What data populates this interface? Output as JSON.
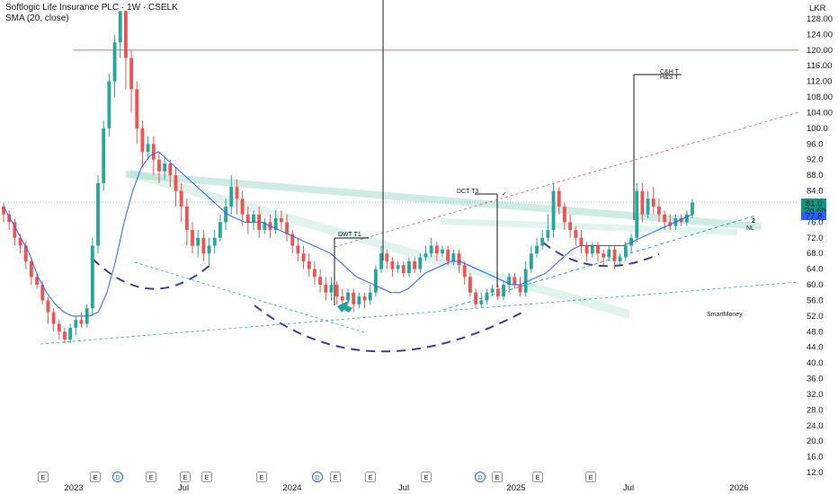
{
  "header": {
    "title": "Softlogic Life Insurance PLC · 1W · CSELK",
    "indicator": "SMA (20, close)"
  },
  "price_axis": {
    "currency": "LKR",
    "ticks": [
      "128.00",
      "124.00",
      "120.00",
      "116.00",
      "112.00",
      "108.00",
      "104.00",
      "100.0",
      "96.0",
      "92.0",
      "88.0",
      "84.0",
      "80.0",
      "76.0",
      "72.0",
      "68.0",
      "64.0",
      "60.0",
      "56.0",
      "52.0",
      "48.0",
      "44.0",
      "40.0",
      "36.0",
      "32.0",
      "28.0",
      "24.0",
      "20.0",
      "16.0",
      "12.0"
    ]
  },
  "time_axis": {
    "ticks": [
      "2023",
      "Jul",
      "2024",
      "Jul",
      "2025",
      "Jul",
      "2026"
    ]
  },
  "badges": {
    "price": "81.0",
    "countdown": "2d 6h",
    "price2": "76.0",
    "sma": "77.8"
  },
  "annotations": {
    "dwt": "DWT  T1",
    "dct": "DCT  T3",
    "chart1": "C&H T",
    "chart2": "H&S T",
    "nl": "NL",
    "two": "2",
    "watermark": "SmartMoney"
  },
  "events": [
    "E",
    "E",
    "D",
    "E",
    "E",
    "E",
    "E",
    "D",
    "E",
    "E",
    "E",
    "D",
    "E",
    "E",
    "E"
  ],
  "colors": {
    "up": "#26a69a",
    "down": "#ef5350",
    "sma": "#2962ff",
    "band": "#a5dccc",
    "arc": "#3d3d9a",
    "resistance": "#ef5350",
    "badge_green": "#089981",
    "badge_blue": "#2962ff"
  },
  "chart_data": {
    "type": "candlestick",
    "y_range": [
      12,
      130
    ],
    "x_range": [
      "2022-11",
      "2026-02"
    ],
    "candles": [
      [
        80,
        78,
        81,
        76
      ],
      [
        78,
        76,
        79,
        74
      ],
      [
        76,
        72,
        77,
        70
      ],
      [
        72,
        70,
        73,
        68
      ],
      [
        70,
        66,
        71,
        64
      ],
      [
        66,
        62,
        67,
        60
      ],
      [
        62,
        60,
        63,
        59
      ],
      [
        60,
        56,
        61,
        55
      ],
      [
        56,
        53,
        57,
        50
      ],
      [
        53,
        50,
        54,
        48
      ],
      [
        50,
        48,
        51,
        46
      ],
      [
        48,
        46,
        49,
        45
      ],
      [
        46,
        49,
        50,
        45
      ],
      [
        49,
        51,
        52,
        47
      ],
      [
        51,
        50,
        53,
        49
      ],
      [
        50,
        54,
        55,
        49
      ],
      [
        54,
        70,
        72,
        52
      ],
      [
        70,
        86,
        88,
        68
      ],
      [
        86,
        100,
        102,
        84
      ],
      [
        100,
        112,
        114,
        98
      ],
      [
        112,
        122,
        124,
        108
      ],
      [
        122,
        130,
        130,
        118
      ],
      [
        130,
        118,
        130,
        110
      ],
      [
        118,
        110,
        120,
        104
      ],
      [
        110,
        100,
        112,
        96
      ],
      [
        100,
        94,
        102,
        90
      ],
      [
        94,
        96,
        98,
        92
      ],
      [
        96,
        92,
        98,
        88
      ],
      [
        92,
        89,
        94,
        86
      ],
      [
        89,
        91,
        93,
        87
      ],
      [
        91,
        88,
        92,
        85
      ],
      [
        88,
        84,
        90,
        80
      ],
      [
        84,
        80,
        86,
        76
      ],
      [
        80,
        74,
        82,
        70
      ],
      [
        74,
        70,
        76,
        68
      ],
      [
        70,
        72,
        74,
        67
      ],
      [
        72,
        68,
        74,
        66
      ],
      [
        68,
        70,
        72,
        65
      ],
      [
        70,
        72,
        74,
        68
      ],
      [
        72,
        76,
        78,
        71
      ],
      [
        76,
        80,
        82,
        74
      ],
      [
        80,
        85,
        88,
        78
      ],
      [
        85,
        82,
        87,
        78
      ],
      [
        82,
        78,
        84,
        75
      ],
      [
        78,
        76,
        80,
        73
      ],
      [
        76,
        78,
        79,
        74
      ],
      [
        78,
        74,
        80,
        72
      ],
      [
        74,
        76,
        77,
        73
      ],
      [
        76,
        74,
        78,
        72
      ],
      [
        74,
        77,
        79,
        73
      ],
      [
        77,
        76,
        79,
        74
      ],
      [
        76,
        73,
        78,
        71
      ],
      [
        73,
        70,
        74,
        68
      ],
      [
        70,
        68,
        72,
        66
      ],
      [
        68,
        66,
        70,
        64
      ],
      [
        66,
        64,
        68,
        62
      ],
      [
        64,
        62,
        66,
        60
      ],
      [
        62,
        60,
        64,
        58
      ],
      [
        60,
        58,
        62,
        56
      ],
      [
        58,
        60,
        62,
        56
      ],
      [
        60,
        57,
        61,
        55
      ],
      [
        57,
        56,
        59,
        54
      ],
      [
        56,
        58,
        59,
        55
      ],
      [
        58,
        55,
        59,
        53
      ],
      [
        55,
        57,
        58,
        54
      ],
      [
        57,
        56,
        58,
        54
      ],
      [
        56,
        58,
        60,
        55
      ],
      [
        58,
        64,
        65,
        57
      ],
      [
        64,
        68,
        70,
        63
      ],
      [
        68,
        66,
        69,
        64
      ],
      [
        66,
        64,
        67,
        62
      ],
      [
        64,
        65,
        66,
        63
      ],
      [
        65,
        63,
        66,
        62
      ],
      [
        63,
        66,
        67,
        62
      ],
      [
        66,
        64,
        67,
        63
      ],
      [
        64,
        67,
        68,
        63
      ],
      [
        67,
        68,
        70,
        66
      ],
      [
        68,
        70,
        72,
        67
      ],
      [
        70,
        68,
        71,
        66
      ],
      [
        68,
        69,
        70,
        67
      ],
      [
        69,
        66,
        70,
        65
      ],
      [
        66,
        68,
        69,
        65
      ],
      [
        68,
        65,
        69,
        63
      ],
      [
        65,
        62,
        66,
        60
      ],
      [
        62,
        58,
        63,
        57
      ],
      [
        58,
        55,
        59,
        54
      ],
      [
        55,
        56,
        58,
        54
      ],
      [
        56,
        58,
        59,
        55
      ],
      [
        58,
        59,
        60,
        57
      ],
      [
        59,
        57,
        60,
        56
      ],
      [
        57,
        60,
        61,
        56
      ],
      [
        60,
        62,
        63,
        58
      ],
      [
        62,
        60,
        63,
        59
      ],
      [
        60,
        58,
        62,
        57
      ],
      [
        58,
        64,
        66,
        57
      ],
      [
        64,
        68,
        70,
        63
      ],
      [
        68,
        70,
        72,
        67
      ],
      [
        70,
        72,
        74,
        69
      ],
      [
        72,
        74,
        78,
        71
      ],
      [
        74,
        84,
        86,
        72
      ],
      [
        84,
        80,
        85,
        78
      ],
      [
        80,
        76,
        81,
        74
      ],
      [
        76,
        74,
        78,
        72
      ],
      [
        74,
        72,
        75,
        70
      ],
      [
        72,
        70,
        74,
        68
      ],
      [
        70,
        68,
        71,
        66
      ],
      [
        68,
        70,
        71,
        67
      ],
      [
        70,
        68,
        71,
        66
      ],
      [
        68,
        67,
        69,
        65
      ],
      [
        67,
        69,
        70,
        66
      ],
      [
        69,
        66,
        70,
        64
      ],
      [
        66,
        67,
        68,
        65
      ],
      [
        67,
        70,
        71,
        66
      ],
      [
        70,
        72,
        73,
        68
      ],
      [
        72,
        84,
        86,
        71
      ],
      [
        84,
        78,
        86,
        76
      ],
      [
        78,
        82,
        84,
        77
      ],
      [
        82,
        80,
        85,
        78
      ],
      [
        80,
        78,
        82,
        76
      ],
      [
        78,
        76,
        79,
        74
      ],
      [
        76,
        75,
        78,
        74
      ],
      [
        75,
        77,
        78,
        74
      ],
      [
        77,
        76,
        78,
        75
      ],
      [
        76,
        78,
        79,
        75
      ],
      [
        78,
        81,
        82,
        77
      ]
    ],
    "sma": [
      80,
      76,
      72,
      68,
      62,
      58,
      55,
      53,
      52,
      52,
      52,
      53,
      58,
      66,
      76,
      84,
      90,
      93,
      94,
      92,
      90,
      88,
      86,
      84,
      82,
      80,
      78,
      77,
      76,
      76,
      76,
      75,
      74,
      73,
      72,
      71,
      70,
      69,
      68,
      66,
      64,
      62,
      61,
      60,
      59,
      58,
      58,
      59,
      61,
      63,
      64,
      65,
      66,
      66,
      65,
      64,
      63,
      62,
      61,
      60,
      60,
      61,
      62,
      63,
      65,
      67,
      69,
      70,
      70,
      70,
      70,
      70,
      70,
      71,
      72,
      73,
      74,
      75,
      76,
      77,
      78
    ],
    "lines": {
      "resistance": 120,
      "trend_down": {
        "from": [
          "2023-04",
          89
        ],
        "to": [
          "2025-12",
          76
        ]
      },
      "trend_up_red_dashed": {
        "from": [
          "2024-02",
          70
        ],
        "to": [
          "2026-01",
          104
        ]
      },
      "support_long": {
        "from": [
          "2022-12",
          46
        ],
        "to": [
          "2026-02",
          61
        ]
      }
    }
  }
}
